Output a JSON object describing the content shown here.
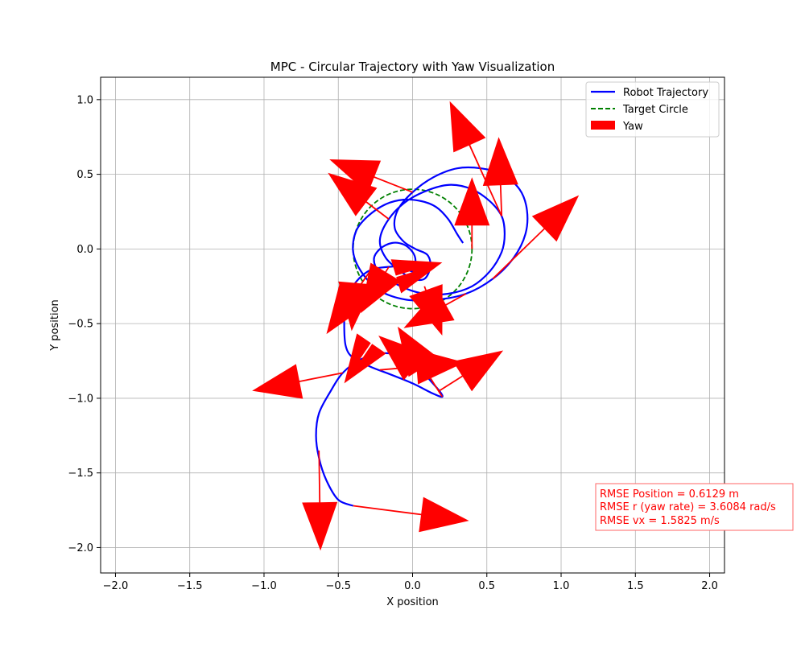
{
  "chart_data": {
    "type": "line",
    "title": "MPC - Circular Trajectory with Yaw Visualization",
    "xlabel": "X position",
    "ylabel": "Y position",
    "xlim": [
      -2.1,
      2.1
    ],
    "ylim": [
      -2.17,
      1.15
    ],
    "xticks": [
      -2.0,
      -1.5,
      -1.0,
      -0.5,
      0.0,
      0.5,
      1.0,
      1.5,
      2.0
    ],
    "yticks": [
      -2.0,
      -1.5,
      -1.0,
      -0.5,
      0.0,
      0.5,
      1.0
    ],
    "xtick_labels": [
      "−2.0",
      "−1.5",
      "−1.0",
      "−0.5",
      "0.0",
      "0.5",
      "1.0",
      "1.5",
      "2.0"
    ],
    "ytick_labels": [
      "−2.0",
      "−1.5",
      "−1.0",
      "−0.5",
      "0.0",
      "0.5",
      "1.0"
    ],
    "grid": true,
    "legend_position": "top-right",
    "legend": [
      {
        "label": "Robot Trajectory",
        "style": "solid-line",
        "color": "#0000ff"
      },
      {
        "label": "Target Circle",
        "style": "dashed-line",
        "color": "#008000"
      },
      {
        "label": "Yaw",
        "style": "patch",
        "color": "#ff0000"
      }
    ],
    "series": [
      {
        "name": "Robot Trajectory",
        "color": "#0000ff",
        "style": "solid",
        "points": [
          [
            -0.4,
            -1.72
          ],
          [
            -0.5,
            -1.68
          ],
          [
            -0.58,
            -1.55
          ],
          [
            -0.63,
            -1.4
          ],
          [
            -0.65,
            -1.25
          ],
          [
            -0.63,
            -1.1
          ],
          [
            -0.55,
            -0.95
          ],
          [
            -0.47,
            -0.83
          ],
          [
            -0.35,
            -0.74
          ],
          [
            -0.22,
            -0.7
          ],
          [
            -0.1,
            -0.71
          ],
          [
            0.02,
            -0.77
          ],
          [
            0.1,
            -0.86
          ],
          [
            0.18,
            -0.95
          ],
          [
            0.2,
            -0.99
          ],
          [
            0.14,
            -0.97
          ],
          [
            0.0,
            -0.9
          ],
          [
            -0.15,
            -0.84
          ],
          [
            -0.28,
            -0.79
          ],
          [
            -0.4,
            -0.73
          ],
          [
            -0.45,
            -0.65
          ],
          [
            -0.46,
            -0.5
          ],
          [
            -0.45,
            -0.35
          ],
          [
            -0.38,
            -0.22
          ],
          [
            -0.28,
            -0.14
          ],
          [
            -0.16,
            -0.12
          ],
          [
            -0.06,
            -0.12
          ],
          [
            0.0,
            -0.15
          ],
          [
            0.02,
            -0.08
          ],
          [
            0.0,
            -0.02
          ],
          [
            -0.06,
            0.03
          ],
          [
            -0.14,
            0.04
          ],
          [
            -0.22,
            0.0
          ],
          [
            -0.26,
            -0.07
          ],
          [
            -0.22,
            -0.16
          ],
          [
            -0.08,
            -0.25
          ],
          [
            0.08,
            -0.3
          ],
          [
            0.24,
            -0.3
          ],
          [
            0.4,
            -0.25
          ],
          [
            0.52,
            -0.15
          ],
          [
            0.6,
            -0.02
          ],
          [
            0.62,
            0.1
          ],
          [
            0.6,
            0.22
          ],
          [
            0.52,
            0.32
          ],
          [
            0.4,
            0.4
          ],
          [
            0.26,
            0.43
          ],
          [
            0.12,
            0.4
          ],
          [
            -0.04,
            0.32
          ],
          [
            -0.16,
            0.2
          ],
          [
            -0.22,
            0.06
          ],
          [
            -0.18,
            -0.06
          ],
          [
            -0.08,
            -0.15
          ],
          [
            0.0,
            -0.2
          ],
          [
            0.08,
            -0.2
          ],
          [
            0.12,
            -0.12
          ],
          [
            0.1,
            -0.04
          ],
          [
            0.02,
            0.0
          ],
          [
            -0.06,
            0.05
          ],
          [
            -0.12,
            0.14
          ],
          [
            -0.1,
            0.26
          ],
          [
            0.0,
            0.38
          ],
          [
            0.14,
            0.48
          ],
          [
            0.3,
            0.54
          ],
          [
            0.46,
            0.54
          ],
          [
            0.6,
            0.5
          ],
          [
            0.72,
            0.4
          ],
          [
            0.77,
            0.26
          ],
          [
            0.76,
            0.1
          ],
          [
            0.68,
            -0.06
          ],
          [
            0.54,
            -0.2
          ],
          [
            0.36,
            -0.3
          ],
          [
            0.16,
            -0.34
          ],
          [
            -0.04,
            -0.34
          ],
          [
            -0.22,
            -0.28
          ],
          [
            -0.34,
            -0.16
          ],
          [
            -0.4,
            -0.02
          ],
          [
            -0.38,
            0.12
          ],
          [
            -0.3,
            0.22
          ],
          [
            -0.18,
            0.3
          ],
          [
            -0.06,
            0.33
          ],
          [
            0.06,
            0.32
          ],
          [
            0.16,
            0.28
          ],
          [
            0.24,
            0.2
          ],
          [
            0.3,
            0.1
          ],
          [
            0.34,
            0.04
          ]
        ]
      },
      {
        "name": "Target Circle",
        "color": "#008000",
        "style": "dashed",
        "center": [
          0.0,
          0.0
        ],
        "radius": 0.4
      }
    ],
    "yaw_arrows": [
      {
        "x0": -0.4,
        "y0": -1.72,
        "x1": 0.38,
        "y1": -1.82
      },
      {
        "x0": -0.63,
        "y0": -1.35,
        "x1": -0.62,
        "y1": -2.02
      },
      {
        "x0": -0.47,
        "y0": -0.83,
        "x1": -1.08,
        "y1": -0.95
      },
      {
        "x0": -0.35,
        "y0": -0.74,
        "x1": -0.46,
        "y1": -0.9
      },
      {
        "x0": -0.22,
        "y0": -0.81,
        "x1": 0.35,
        "y1": -0.76
      },
      {
        "x0": 0.18,
        "y0": -0.95,
        "x1": 0.61,
        "y1": -0.68
      },
      {
        "x0": -0.28,
        "y0": -0.14,
        "x1": -0.58,
        "y1": -0.57
      },
      {
        "x0": -0.38,
        "y0": -0.22,
        "x1": -0.41,
        "y1": -0.55
      },
      {
        "x0": 0.0,
        "y0": -0.15,
        "x1": 0.2,
        "y1": -0.09
      },
      {
        "x0": -0.16,
        "y0": -0.12,
        "x1": -0.35,
        "y1": -0.43
      },
      {
        "x0": 0.1,
        "y0": -0.86,
        "x1": -0.23,
        "y1": -0.58
      },
      {
        "x0": 0.2,
        "y0": -0.99,
        "x1": -0.1,
        "y1": -0.52
      },
      {
        "x0": 0.36,
        "y0": -0.3,
        "x1": -0.06,
        "y1": -0.53
      },
      {
        "x0": 0.08,
        "y0": -0.25,
        "x1": 0.2,
        "y1": -0.58
      },
      {
        "x0": -0.16,
        "y0": 0.2,
        "x1": -0.57,
        "y1": 0.51
      },
      {
        "x0": 0.0,
        "y0": 0.38,
        "x1": -0.56,
        "y1": 0.6
      },
      {
        "x0": 0.6,
        "y0": 0.22,
        "x1": 0.25,
        "y1": 0.99
      },
      {
        "x0": 0.6,
        "y0": 0.22,
        "x1": 0.58,
        "y1": 0.75
      },
      {
        "x0": 0.4,
        "y0": 0.0,
        "x1": 0.4,
        "y1": 0.48
      },
      {
        "x0": 0.54,
        "y0": -0.2,
        "x1": 1.12,
        "y1": 0.36
      }
    ]
  },
  "annotation": {
    "lines": [
      "RMSE Position = 0.6129 m",
      "RMSE r (yaw rate) = 3.6084 rad/s",
      "RMSE vx = 1.5825 m/s"
    ],
    "color": "#ff0000"
  }
}
